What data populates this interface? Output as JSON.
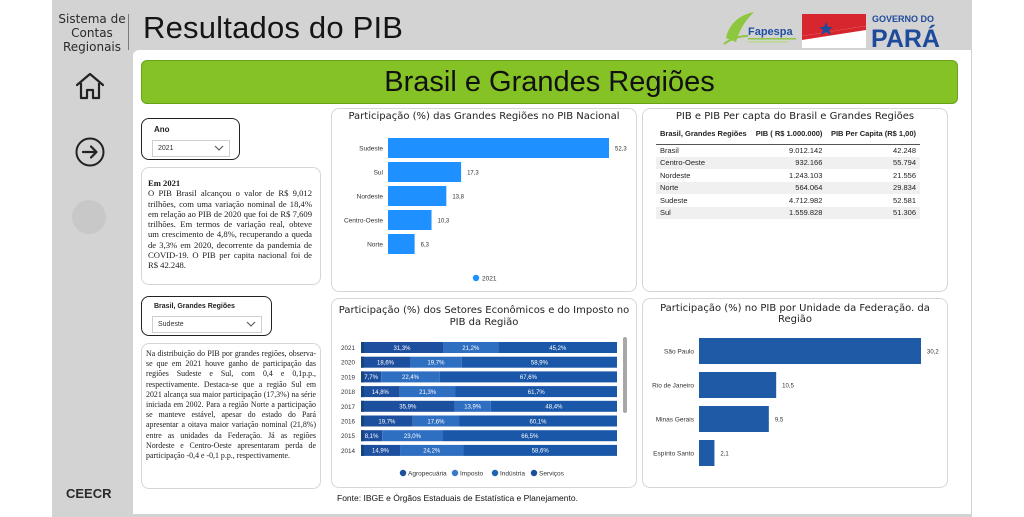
{
  "nav": {
    "system_line1": "Sistema de",
    "system_line2": "Contas",
    "system_line3": "Regionais",
    "footer": "CEECR"
  },
  "header": {
    "title": "Resultados do PIB",
    "logo_fapespa": "Fapespa",
    "logo_gov_line1": "GOVERNO DO",
    "logo_gov_line2": "PARÁ"
  },
  "banner": {
    "text": "Brasil e Grandes Regiões"
  },
  "slicer_ano": {
    "label": "Ano",
    "value": "2021"
  },
  "slicer_regiao": {
    "label": "Brasil, Grandes Regiões",
    "value": "Sudeste"
  },
  "text_2021": {
    "heading": "Em 2021",
    "body": "O PIB Brasil alcançou o valor de R$ 9,012 trilhões, com uma variação nominal de 18,4% em relação ao PIB de 2020 que foi de R$ 7,609 trilhões. Em termos de variação real, obteve um crescimento de 4,8%, recuperando a queda de 3,3% em 2020, decorrente da pandemia de COVID-19. O PIB per capita nacional foi de R$ 42.248."
  },
  "text_regioes": {
    "body": "Na distribuição do PIB por grandes regiões, observa-se que em 2021 houve ganho de participação das regiões Sudeste e Sul, com 0,4 e 0,1p.p., respectivamente. Destaca-se que a região Sul em 2021 alcança sua maior participação (17,3%) na série iniciada em 2002. Para a região Norte a participação se manteve estável, apesar do estado do Pará apresentar a oitava maior variação nominal (21,8%) entre as unidades da Federação. Já as regiões Nordeste e Centro-Oeste apresentaram perda de participação -0,4 e -0,1 p.p., respectivamente."
  },
  "colors": {
    "bar_light": "#1e90ff",
    "bar_dark": "#1f5aa6",
    "stack_dark": "#1c4f9c",
    "stack_mid": "#3a78c9",
    "stack_light": "#1f63b5",
    "banner_green": "#84c225"
  },
  "table": {
    "title": "PIB e PIB Per capta do Brasil e Grandes Regiões",
    "headers": [
      "Brasil, Grandes Regiões",
      "PIB ( R$ 1.000.000)",
      "PIB Per Capita (R$ 1,00)"
    ],
    "rows": [
      [
        "Brasil",
        "9.012.142",
        "42.248"
      ],
      [
        "Centro-Oeste",
        "932.166",
        "55.794"
      ],
      [
        "Nordeste",
        "1.243.103",
        "21.556"
      ],
      [
        "Norte",
        "564.064",
        "29.834"
      ],
      [
        "Sudeste",
        "4.712.982",
        "52.581"
      ],
      [
        "Sul",
        "1.559.828",
        "51.306"
      ]
    ]
  },
  "chart_data": [
    {
      "type": "bar",
      "orientation": "horizontal",
      "title": "Participação (%) das Grandes Regiões no PIB Nacional",
      "categories": [
        "Sudeste",
        "Sul",
        "Nordeste",
        "Centro-Oeste",
        "Norte"
      ],
      "series": [
        {
          "name": "2021",
          "values": [
            52.3,
            17.3,
            13.8,
            10.3,
            6.3
          ]
        }
      ],
      "value_labels": [
        "52,3",
        "17,3",
        "13,8",
        "10,3",
        "6,3"
      ],
      "legend": "bottom-center",
      "xlim": [
        0,
        52.3
      ]
    },
    {
      "type": "bar",
      "orientation": "horizontal",
      "stacked": true,
      "percent": true,
      "title": "Participação (%) dos Setores Econômicos e do Imposto no PIB da Região",
      "categories": [
        "2021",
        "2020",
        "2019",
        "2018",
        "2017",
        "2016",
        "2015",
        "2014"
      ],
      "series": [
        {
          "name": "Agropecuária",
          "values": [
            null,
            null,
            null,
            null,
            null,
            null,
            null,
            null
          ]
        },
        {
          "name": "Imposto",
          "values": [
            31.3,
            18.6,
            7.7,
            14.8,
            35.9,
            19.7,
            8.1,
            14.9
          ]
        },
        {
          "name": "Indústria",
          "values": [
            21.2,
            19.7,
            22.4,
            21.3,
            13.9,
            17.6,
            23.0,
            24.2
          ]
        },
        {
          "name": "Serviços",
          "values": [
            45.2,
            58.9,
            67.6,
            61.7,
            48.4,
            60.1,
            66.5,
            58.6
          ]
        }
      ],
      "value_labels": [
        [
          "31,3%",
          "21,2%",
          "45,2%"
        ],
        [
          "18,6%",
          "19,7%",
          "58,9%"
        ],
        [
          "7,7%",
          "22,4%",
          "67,6%"
        ],
        [
          "14,8%",
          "21,3%",
          "61,7%"
        ],
        [
          "35,9%",
          "13,9%",
          "48,4%"
        ],
        [
          "19,7%",
          "17,6%",
          "60,1%"
        ],
        [
          "8,1%",
          "23,0%",
          "66,5%"
        ],
        [
          "14,9%",
          "24,2%",
          "58,6%"
        ]
      ],
      "legend": "bottom-center"
    },
    {
      "type": "bar",
      "orientation": "horizontal",
      "title": "Participação (%) no PIB por Unidade da Federação. da Região",
      "categories": [
        "São Paulo",
        "Rio de Janeiro",
        "Minas Gerais",
        "Espírito Santo"
      ],
      "series": [
        {
          "values": [
            30.2,
            10.5,
            9.5,
            2.1
          ]
        }
      ],
      "value_labels": [
        "30,2",
        "10,5",
        "9,5",
        "2,1"
      ],
      "xlim": [
        0,
        30.2
      ]
    }
  ],
  "source": "Fonte: IBGE e Órgãos Estaduais de Estatística e Planejamento."
}
